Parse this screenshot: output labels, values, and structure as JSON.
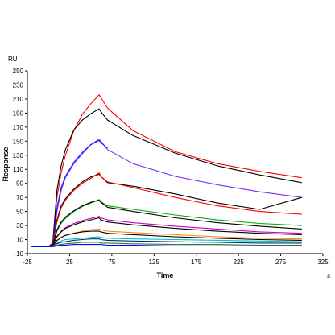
{
  "chart_data": {
    "type": "line",
    "title": "",
    "xlabel": "Time",
    "ylabel": "Response",
    "x_unit": "s",
    "y_unit": "RU",
    "xlim": [
      -25,
      325
    ],
    "ylim": [
      -10,
      250
    ],
    "x_ticks": [
      "-25",
      "25",
      "75",
      "125",
      "175",
      "225",
      "275",
      "325"
    ],
    "y_ticks": [
      "-10",
      "10",
      "30",
      "50",
      "70",
      "90",
      "110",
      "130",
      "150",
      "170",
      "190",
      "210",
      "230",
      "250"
    ],
    "grid": false,
    "legend": "none",
    "series": [
      {
        "color": "#ff0000",
        "values": [
          [
            -20,
            0
          ],
          [
            0,
            0
          ],
          [
            5,
            5
          ],
          [
            10,
            70
          ],
          [
            15,
            105
          ],
          [
            20,
            130
          ],
          [
            30,
            165
          ],
          [
            40,
            188
          ],
          [
            50,
            203
          ],
          [
            60,
            216
          ],
          [
            62,
            212
          ],
          [
            70,
            197
          ],
          [
            100,
            165
          ],
          [
            150,
            135
          ],
          [
            200,
            118
          ],
          [
            250,
            107
          ],
          [
            300,
            98
          ]
        ]
      },
      {
        "color": "#000000",
        "values": [
          [
            -20,
            0
          ],
          [
            0,
            0
          ],
          [
            5,
            5
          ],
          [
            10,
            80
          ],
          [
            15,
            115
          ],
          [
            20,
            138
          ],
          [
            30,
            166
          ],
          [
            40,
            180
          ],
          [
            50,
            189
          ],
          [
            60,
            196
          ],
          [
            62,
            192
          ],
          [
            70,
            180
          ],
          [
            100,
            158
          ],
          [
            150,
            133
          ],
          [
            200,
            115
          ],
          [
            250,
            102
          ],
          [
            300,
            91
          ]
        ]
      },
      {
        "color": "#7b2cff",
        "values": [
          [
            -20,
            0
          ],
          [
            0,
            0
          ],
          [
            5,
            4
          ],
          [
            10,
            50
          ],
          [
            15,
            80
          ],
          [
            20,
            98
          ],
          [
            30,
            118
          ],
          [
            40,
            132
          ],
          [
            50,
            145
          ],
          [
            60,
            153
          ],
          [
            62,
            150
          ],
          [
            70,
            138
          ],
          [
            100,
            118
          ],
          [
            150,
            100
          ],
          [
            200,
            88
          ],
          [
            250,
            78
          ],
          [
            300,
            70
          ]
        ]
      },
      {
        "color": "#1a1aff",
        "values": [
          [
            -20,
            0
          ],
          [
            0,
            0
          ],
          [
            5,
            4
          ],
          [
            10,
            55
          ],
          [
            15,
            84
          ],
          [
            20,
            100
          ],
          [
            30,
            120
          ],
          [
            40,
            134
          ],
          [
            50,
            145
          ],
          [
            60,
            151
          ],
          [
            62,
            148
          ],
          [
            70,
            140
          ]
        ]
      },
      {
        "color": "#000000",
        "values": [
          [
            -20,
            0
          ],
          [
            0,
            0
          ],
          [
            5,
            3
          ],
          [
            10,
            38
          ],
          [
            15,
            58
          ],
          [
            20,
            68
          ],
          [
            30,
            82
          ],
          [
            40,
            92
          ],
          [
            50,
            99
          ],
          [
            60,
            103
          ],
          [
            62,
            100
          ],
          [
            70,
            91
          ],
          [
            100,
            86
          ],
          [
            150,
            75
          ],
          [
            200,
            62
          ],
          [
            250,
            53
          ],
          [
            300,
            70
          ]
        ]
      },
      {
        "color": "#ff0000",
        "values": [
          [
            -20,
            0
          ],
          [
            0,
            0
          ],
          [
            5,
            3
          ],
          [
            10,
            35
          ],
          [
            15,
            55
          ],
          [
            20,
            66
          ],
          [
            30,
            80
          ],
          [
            40,
            90
          ],
          [
            50,
            97
          ],
          [
            60,
            105
          ],
          [
            62,
            100
          ],
          [
            70,
            92
          ],
          [
            100,
            84
          ],
          [
            150,
            70
          ],
          [
            200,
            58
          ],
          [
            250,
            50
          ],
          [
            300,
            46
          ]
        ]
      },
      {
        "color": "#00aa00",
        "values": [
          [
            -20,
            0
          ],
          [
            0,
            0
          ],
          [
            5,
            2
          ],
          [
            10,
            22
          ],
          [
            15,
            33
          ],
          [
            20,
            40
          ],
          [
            30,
            50
          ],
          [
            40,
            57
          ],
          [
            50,
            62
          ],
          [
            60,
            67
          ],
          [
            62,
            64
          ],
          [
            70,
            58
          ],
          [
            100,
            53
          ],
          [
            150,
            45
          ],
          [
            200,
            38
          ],
          [
            250,
            33
          ],
          [
            300,
            30
          ]
        ]
      },
      {
        "color": "#000000",
        "values": [
          [
            -20,
            0
          ],
          [
            0,
            0
          ],
          [
            5,
            2
          ],
          [
            10,
            24
          ],
          [
            15,
            35
          ],
          [
            20,
            42
          ],
          [
            30,
            51
          ],
          [
            40,
            58
          ],
          [
            50,
            63
          ],
          [
            60,
            66
          ],
          [
            62,
            63
          ],
          [
            70,
            56
          ],
          [
            100,
            50
          ],
          [
            150,
            41
          ],
          [
            200,
            34
          ],
          [
            250,
            29
          ],
          [
            300,
            25
          ]
        ]
      },
      {
        "color": "#cc00cc",
        "values": [
          [
            -20,
            0
          ],
          [
            0,
            0
          ],
          [
            5,
            2
          ],
          [
            10,
            15
          ],
          [
            15,
            22
          ],
          [
            20,
            27
          ],
          [
            30,
            33
          ],
          [
            40,
            37
          ],
          [
            50,
            40
          ],
          [
            60,
            43
          ],
          [
            62,
            41
          ],
          [
            70,
            38
          ],
          [
            100,
            34
          ],
          [
            150,
            29
          ],
          [
            200,
            25
          ],
          [
            250,
            21
          ],
          [
            300,
            19
          ]
        ]
      },
      {
        "color": "#000000",
        "values": [
          [
            -20,
            0
          ],
          [
            0,
            0
          ],
          [
            5,
            2
          ],
          [
            10,
            14
          ],
          [
            15,
            21
          ],
          [
            20,
            26
          ],
          [
            30,
            31
          ],
          [
            40,
            35
          ],
          [
            50,
            38
          ],
          [
            60,
            41
          ],
          [
            62,
            38
          ],
          [
            70,
            35
          ],
          [
            100,
            31
          ],
          [
            150,
            26
          ],
          [
            200,
            22
          ],
          [
            250,
            19
          ],
          [
            300,
            17
          ]
        ]
      },
      {
        "color": "#ff8c00",
        "values": [
          [
            -20,
            0
          ],
          [
            0,
            0
          ],
          [
            5,
            1
          ],
          [
            10,
            8
          ],
          [
            15,
            13
          ],
          [
            20,
            16
          ],
          [
            30,
            19
          ],
          [
            40,
            22
          ],
          [
            50,
            24
          ],
          [
            60,
            25
          ],
          [
            62,
            24
          ],
          [
            70,
            22
          ],
          [
            100,
            20
          ],
          [
            150,
            17
          ],
          [
            200,
            14
          ],
          [
            250,
            12
          ],
          [
            300,
            11
          ]
        ]
      },
      {
        "color": "#000000",
        "values": [
          [
            -20,
            0
          ],
          [
            0,
            0
          ],
          [
            5,
            1
          ],
          [
            10,
            9
          ],
          [
            15,
            13
          ],
          [
            20,
            16
          ],
          [
            30,
            19
          ],
          [
            40,
            21
          ],
          [
            50,
            22
          ],
          [
            60,
            22
          ],
          [
            62,
            21
          ],
          [
            70,
            19
          ],
          [
            100,
            17
          ],
          [
            150,
            14
          ],
          [
            200,
            12
          ],
          [
            250,
            10
          ],
          [
            300,
            9
          ]
        ]
      },
      {
        "color": "#00bcd4",
        "values": [
          [
            -20,
            0
          ],
          [
            0,
            0
          ],
          [
            5,
            1
          ],
          [
            10,
            5
          ],
          [
            15,
            8
          ],
          [
            20,
            10
          ],
          [
            30,
            11
          ],
          [
            40,
            12
          ],
          [
            50,
            13
          ],
          [
            60,
            14
          ],
          [
            62,
            13
          ],
          [
            70,
            12
          ],
          [
            100,
            11
          ],
          [
            150,
            10
          ],
          [
            200,
            9
          ],
          [
            250,
            8
          ],
          [
            300,
            7
          ]
        ]
      },
      {
        "color": "#003366",
        "values": [
          [
            -20,
            0
          ],
          [
            0,
            0
          ],
          [
            5,
            1
          ],
          [
            10,
            4
          ],
          [
            15,
            6
          ],
          [
            20,
            7
          ],
          [
            30,
            9
          ],
          [
            40,
            10
          ],
          [
            50,
            11
          ],
          [
            60,
            11
          ],
          [
            62,
            10
          ],
          [
            70,
            9
          ],
          [
            100,
            8
          ],
          [
            150,
            7
          ],
          [
            200,
            6
          ],
          [
            250,
            5
          ],
          [
            300,
            5
          ]
        ]
      },
      {
        "color": "#2e7d32",
        "values": [
          [
            -20,
            0
          ],
          [
            0,
            0
          ],
          [
            5,
            0
          ],
          [
            10,
            2
          ],
          [
            15,
            3
          ],
          [
            20,
            4
          ],
          [
            30,
            5
          ],
          [
            40,
            6
          ],
          [
            50,
            6
          ],
          [
            60,
            6
          ],
          [
            62,
            5
          ],
          [
            70,
            5
          ],
          [
            100,
            4
          ],
          [
            150,
            3
          ],
          [
            200,
            3
          ],
          [
            250,
            2
          ],
          [
            300,
            2
          ]
        ]
      },
      {
        "color": "#0000ff",
        "values": [
          [
            -20,
            0
          ],
          [
            0,
            0
          ],
          [
            5,
            0
          ],
          [
            10,
            1
          ],
          [
            15,
            2
          ],
          [
            20,
            2
          ],
          [
            30,
            3
          ],
          [
            40,
            3
          ],
          [
            50,
            3
          ],
          [
            60,
            3
          ],
          [
            62,
            3
          ],
          [
            70,
            2
          ],
          [
            100,
            2
          ],
          [
            150,
            1
          ],
          [
            200,
            1
          ],
          [
            250,
            1
          ],
          [
            300,
            1
          ]
        ]
      }
    ]
  }
}
